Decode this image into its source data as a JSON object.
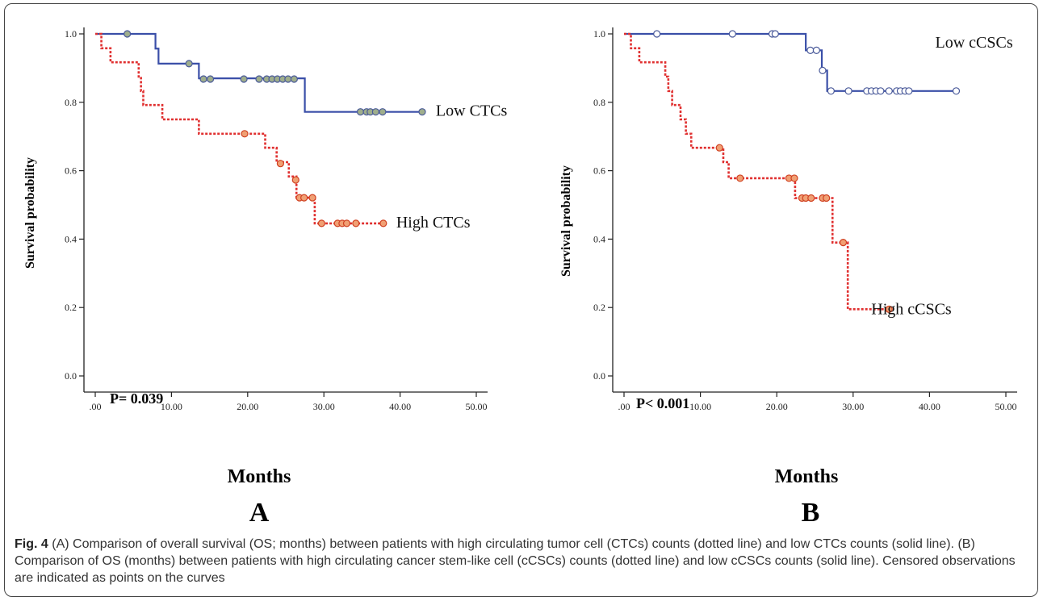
{
  "caption": {
    "label": "Fig. 4",
    "text": "(A) Comparison of overall survival (OS; months) between patients with high circulating tumor cell (CTCs) counts (dotted line) and low CTCs counts (solid line). (B) Comparison of OS (months) between patients with high circulating cancer stem-like cell (cCSCs) counts (dotted line) and low cCSCs counts (solid line). Censored observations are indicated as points on the curves"
  },
  "chart_data": [
    {
      "type": "line",
      "panel_label": "A",
      "xlabel": "Months",
      "ylabel": "Survival probability",
      "xlim": [
        0,
        50
      ],
      "ylim": [
        0,
        1.0
      ],
      "x_ticks": [
        ".00",
        "10.00",
        "20.00",
        "30.00",
        "40.00",
        "50.00"
      ],
      "y_ticks": [
        "0.0",
        "0.2",
        "0.4",
        "0.6",
        "0.8",
        "1.0"
      ],
      "x_tick_values": [
        0,
        10,
        20,
        30,
        40,
        50
      ],
      "y_tick_values": [
        0,
        0.2,
        0.4,
        0.6,
        0.8,
        1.0
      ],
      "annotation": "P= 0.039",
      "grid": false,
      "series": [
        {
          "name": "Low CTCs",
          "style": "solid",
          "color": "#3a4fa8",
          "censor_color": "#9fae8c",
          "steps": [
            [
              0,
              1.0
            ],
            [
              7.9,
              0.957
            ],
            [
              8.3,
              0.913
            ],
            [
              13.6,
              0.87
            ],
            [
              27.5,
              0.772
            ],
            [
              43.0,
              0.772
            ]
          ],
          "censored": [
            [
              4.2,
              1.0
            ],
            [
              12.3,
              0.913
            ],
            [
              14.2,
              0.868
            ],
            [
              15.1,
              0.868
            ],
            [
              19.5,
              0.868
            ],
            [
              21.5,
              0.868
            ],
            [
              22.5,
              0.868
            ],
            [
              23.2,
              0.868
            ],
            [
              23.9,
              0.868
            ],
            [
              24.6,
              0.868
            ],
            [
              25.3,
              0.868
            ],
            [
              26.1,
              0.868
            ],
            [
              34.8,
              0.772
            ],
            [
              35.6,
              0.772
            ],
            [
              36.1,
              0.772
            ],
            [
              36.8,
              0.772
            ],
            [
              37.7,
              0.772
            ],
            [
              42.9,
              0.772
            ]
          ]
        },
        {
          "name": "High CTCs",
          "style": "dotted",
          "color": "#e03030",
          "censor_color": "#f0a074",
          "steps": [
            [
              0,
              1.0
            ],
            [
              0.8,
              0.958
            ],
            [
              2.0,
              0.917
            ],
            [
              5.7,
              0.875
            ],
            [
              6.0,
              0.833
            ],
            [
              6.3,
              0.792
            ],
            [
              8.8,
              0.75
            ],
            [
              13.6,
              0.708
            ],
            [
              22.3,
              0.667
            ],
            [
              23.8,
              0.625
            ],
            [
              25.4,
              0.583
            ],
            [
              26.4,
              0.521
            ],
            [
              28.8,
              0.446
            ],
            [
              37.8,
              0.446
            ]
          ],
          "censored": [
            [
              19.6,
              0.708
            ],
            [
              24.3,
              0.621
            ],
            [
              26.3,
              0.573
            ],
            [
              26.8,
              0.521
            ],
            [
              27.4,
              0.521
            ],
            [
              28.5,
              0.521
            ],
            [
              29.7,
              0.446
            ],
            [
              31.8,
              0.446
            ],
            [
              32.4,
              0.446
            ],
            [
              33.0,
              0.446
            ],
            [
              34.2,
              0.446
            ],
            [
              37.8,
              0.446
            ]
          ]
        }
      ]
    },
    {
      "type": "line",
      "panel_label": "B",
      "xlabel": "Months",
      "ylabel": "Survival probability",
      "xlim": [
        0,
        50
      ],
      "ylim": [
        0,
        1.0
      ],
      "x_ticks": [
        ".00",
        "10.00",
        "20.00",
        "30.00",
        "40.00",
        "50.00"
      ],
      "y_ticks": [
        "0.0",
        "0.2",
        "0.4",
        "0.6",
        "0.8",
        "1.0"
      ],
      "x_tick_values": [
        0,
        10,
        20,
        30,
        40,
        50
      ],
      "y_tick_values": [
        0,
        0.2,
        0.4,
        0.6,
        0.8,
        1.0
      ],
      "annotation": "P< 0.001",
      "grid": false,
      "series": [
        {
          "name": "Low cCSCs",
          "style": "solid",
          "color": "#3a4fa8",
          "censor_color": "#ffffff",
          "steps": [
            [
              0,
              1.0
            ],
            [
              23.8,
              0.952
            ],
            [
              25.9,
              0.893
            ],
            [
              26.6,
              0.833
            ],
            [
              43.5,
              0.833
            ]
          ],
          "censored": [
            [
              4.3,
              1.0
            ],
            [
              14.2,
              1.0
            ],
            [
              19.4,
              1.0
            ],
            [
              19.8,
              1.0
            ],
            [
              24.4,
              0.952
            ],
            [
              25.2,
              0.952
            ],
            [
              26.0,
              0.893
            ],
            [
              27.1,
              0.833
            ],
            [
              29.4,
              0.833
            ],
            [
              31.8,
              0.833
            ],
            [
              32.4,
              0.833
            ],
            [
              33.0,
              0.833
            ],
            [
              33.6,
              0.833
            ],
            [
              34.7,
              0.833
            ],
            [
              35.7,
              0.833
            ],
            [
              36.2,
              0.833
            ],
            [
              36.8,
              0.833
            ],
            [
              37.3,
              0.833
            ],
            [
              43.5,
              0.833
            ]
          ]
        },
        {
          "name": "High cCSCs",
          "style": "dotted",
          "color": "#e03030",
          "censor_color": "#f0a074",
          "steps": [
            [
              0,
              1.0
            ],
            [
              0.9,
              0.958
            ],
            [
              2.0,
              0.917
            ],
            [
              5.4,
              0.875
            ],
            [
              5.8,
              0.833
            ],
            [
              6.3,
              0.792
            ],
            [
              7.4,
              0.75
            ],
            [
              8.1,
              0.708
            ],
            [
              8.8,
              0.667
            ],
            [
              13.0,
              0.625
            ],
            [
              13.7,
              0.578
            ],
            [
              22.4,
              0.52
            ],
            [
              27.3,
              0.39
            ],
            [
              29.3,
              0.195
            ],
            [
              34.7,
              0.195
            ]
          ],
          "censored": [
            [
              12.5,
              0.667
            ],
            [
              15.2,
              0.578
            ],
            [
              21.6,
              0.578
            ],
            [
              22.3,
              0.578
            ],
            [
              23.3,
              0.52
            ],
            [
              23.8,
              0.52
            ],
            [
              24.5,
              0.52
            ],
            [
              26.0,
              0.52
            ],
            [
              26.5,
              0.52
            ],
            [
              28.7,
              0.39
            ],
            [
              34.7,
              0.195
            ]
          ]
        }
      ]
    }
  ]
}
